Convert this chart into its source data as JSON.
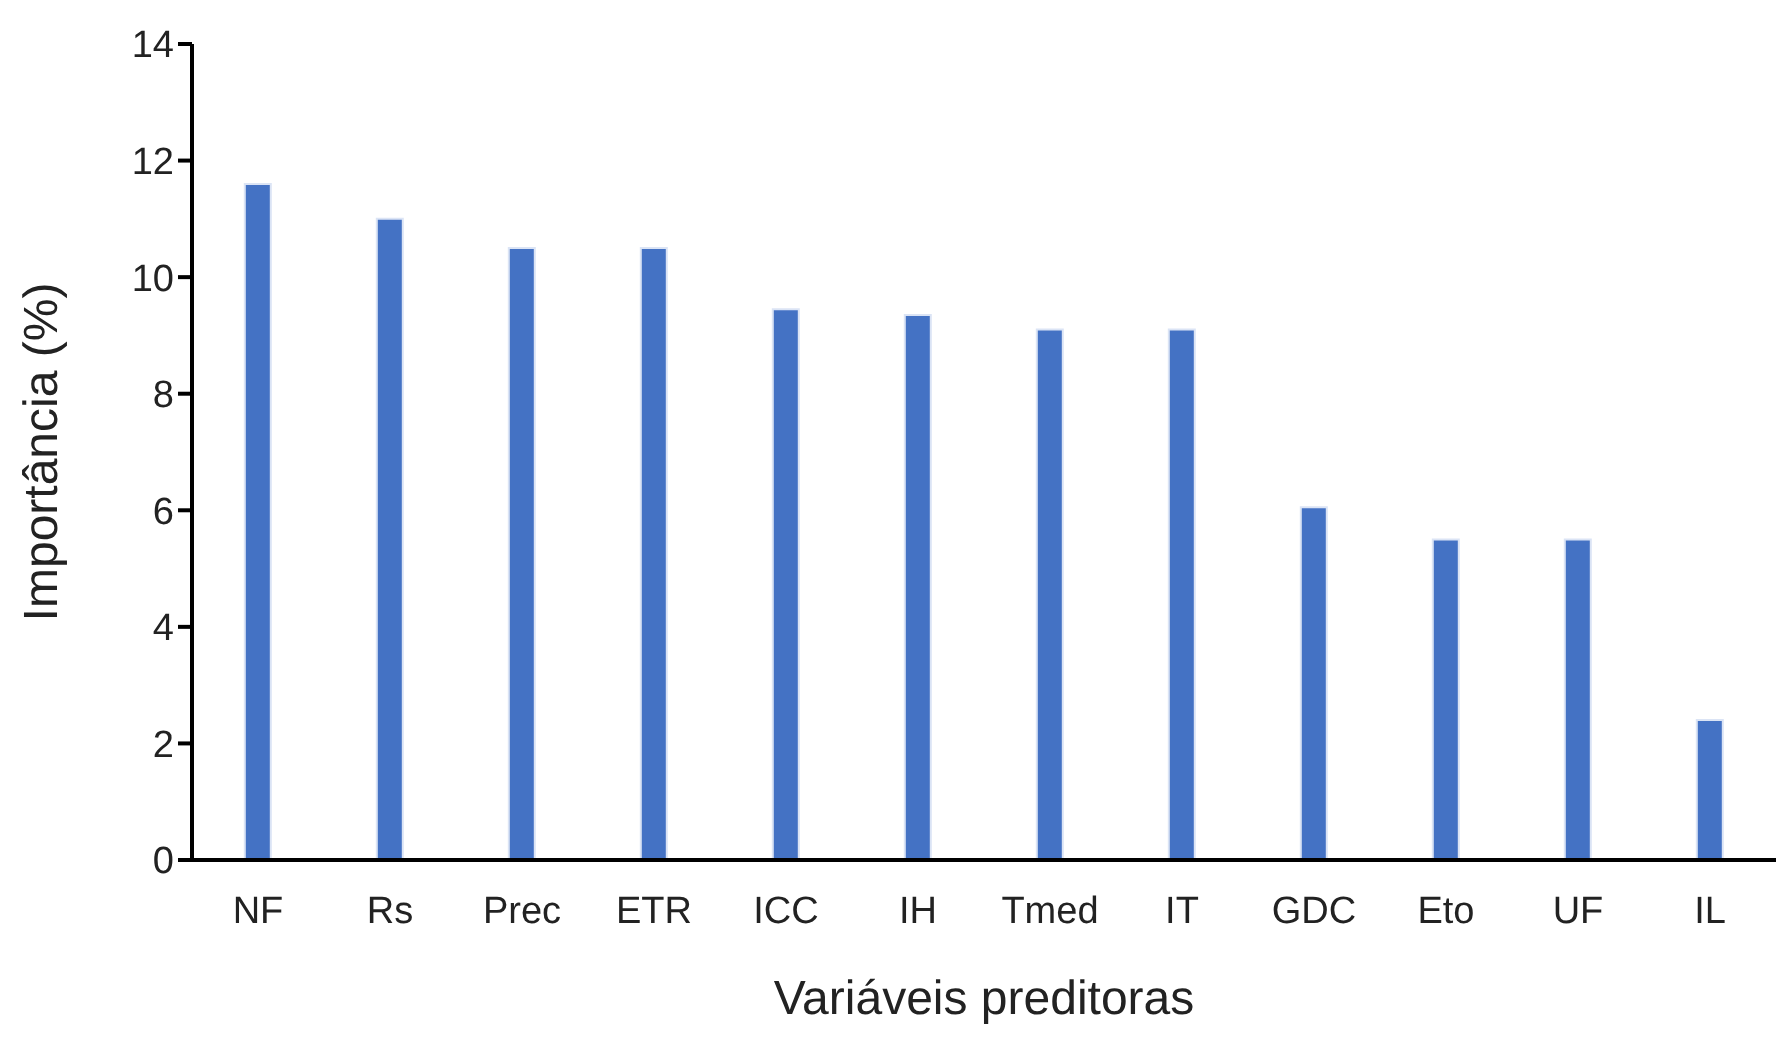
{
  "chart_data": {
    "type": "bar",
    "xlabel": "Variáveis preditoras",
    "ylabel": "Importância (%)",
    "categories": [
      "NF",
      "Rs",
      "Prec",
      "ETR",
      "ICC",
      "IH",
      "Tmed",
      "IT",
      "GDC",
      "Eto",
      "UF",
      "IL"
    ],
    "values": [
      11.6,
      11.0,
      10.5,
      10.5,
      9.45,
      9.35,
      9.1,
      9.1,
      6.05,
      5.5,
      5.5,
      2.4
    ],
    "color": "#4472c4",
    "ylim": [
      0,
      14
    ],
    "yticks": [
      0,
      2,
      4,
      6,
      8,
      10,
      12,
      14
    ],
    "grid": false,
    "legend": false
  }
}
